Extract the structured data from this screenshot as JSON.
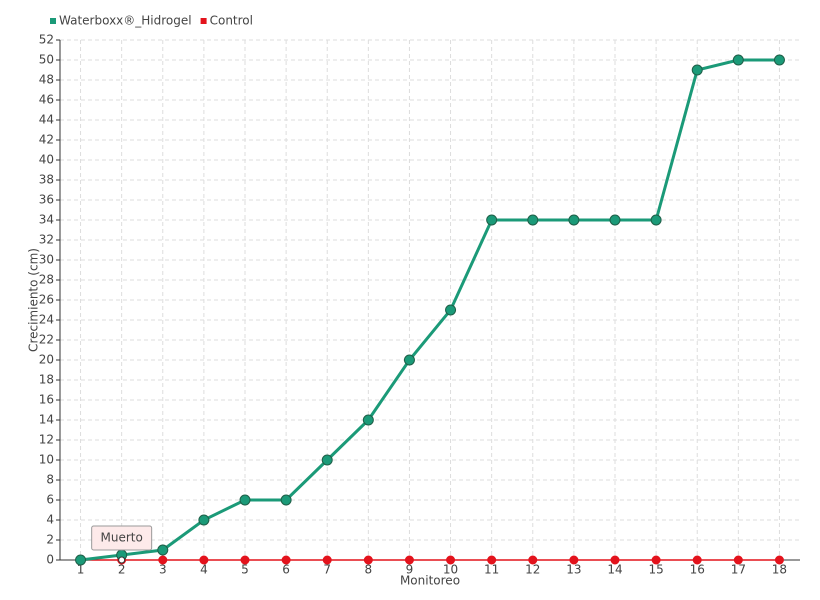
{
  "chart_data": {
    "type": "line",
    "x_label": "Monitoreo",
    "y_label": "Crecimiento (cm)",
    "categories": [
      "1",
      "2",
      "3",
      "4",
      "5",
      "6",
      "7",
      "8",
      "9",
      "10",
      "11",
      "12",
      "13",
      "14",
      "15",
      "16",
      "17",
      "18"
    ],
    "series": [
      {
        "name": "Waterboxx®_Hidrogel",
        "color": "#1b9a78",
        "values": [
          0,
          0.5,
          1,
          4,
          6,
          6,
          10,
          14,
          20,
          25,
          34,
          34,
          34,
          34,
          34,
          49,
          50,
          50
        ]
      },
      {
        "name": "Control",
        "color": "#e3131c",
        "values": [
          0,
          0,
          0,
          0,
          0,
          0,
          0,
          0,
          0,
          0,
          0,
          0,
          0,
          0,
          0,
          0,
          0,
          0
        ]
      }
    ],
    "annotation": "Muerto",
    "ylim": [
      0,
      52
    ],
    "yticks": [
      0,
      2,
      4,
      6,
      8,
      10,
      12,
      14,
      16,
      18,
      20,
      22,
      24,
      26,
      28,
      30,
      32,
      34,
      36,
      38,
      40,
      42,
      44,
      46,
      48,
      50,
      52
    ],
    "grid": true
  }
}
